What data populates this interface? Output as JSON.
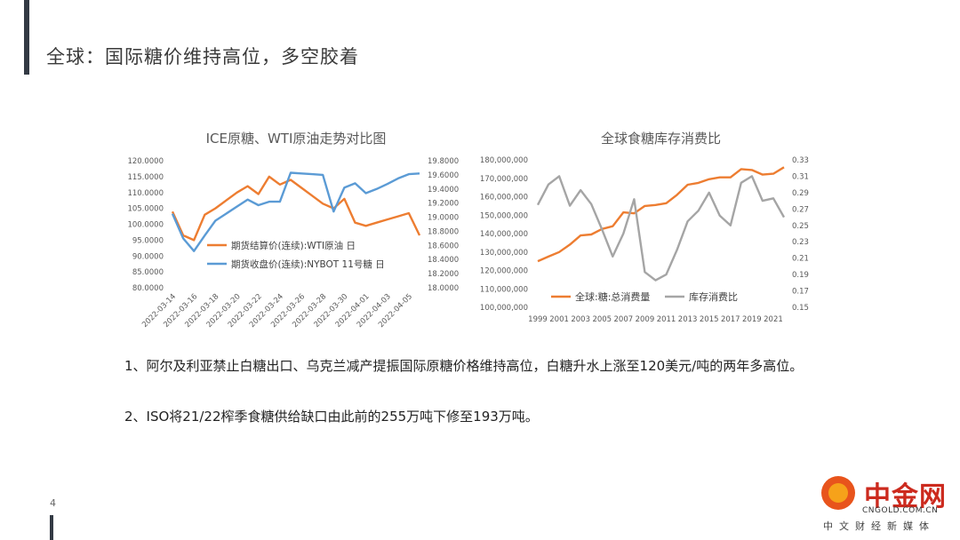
{
  "slide": {
    "title": "全球：国际糖价维持高位，多空胶着",
    "page_number": "4",
    "paragraphs": [
      "1、阿尔及利亚禁止白糖出口、乌克兰减产提振国际原糖价格维持高位，白糖升水上涨至120美元/吨的两年多高位。",
      "2、ISO将21/22榨季食糖供给缺口由此前的255万吨下修至193万吨。"
    ]
  },
  "logo": {
    "name": "中金网",
    "url": "CNGOLD.COM.CN",
    "subtitle": "中文财经新媒体"
  },
  "colors": {
    "orange": "#ed7d31",
    "blue": "#5b9bd5",
    "gray": "#a5a5a5"
  },
  "chart_data": [
    {
      "type": "line",
      "title": "ICE原糖、WTI原油走势对比图",
      "categories": [
        "2022-03-14",
        "2022-03-15",
        "2022-03-16",
        "2022-03-17",
        "2022-03-18",
        "2022-03-19",
        "2022-03-20",
        "2022-03-21",
        "2022-03-22",
        "2022-03-23",
        "2022-03-24",
        "2022-03-25",
        "2022-03-26",
        "2022-03-27",
        "2022-03-28",
        "2022-03-29",
        "2022-03-30",
        "2022-03-31",
        "2022-04-01",
        "2022-04-02",
        "2022-04-03",
        "2022-04-04",
        "2022-04-05",
        "2022-04-06"
      ],
      "x_tick_labels": [
        "2022-03-14",
        "2022-03-16",
        "2022-03-18",
        "2022-03-20",
        "2022-03-22",
        "2022-03-24",
        "2022-03-26",
        "2022-03-28",
        "2022-03-30",
        "2022-04-01",
        "2022-04-03",
        "2022-04-05"
      ],
      "ylim": [
        80,
        120
      ],
      "y_ticks": [
        "80.0000",
        "85.0000",
        "90.0000",
        "95.0000",
        "100.0000",
        "105.0000",
        "110.0000",
        "115.0000",
        "120.0000"
      ],
      "y2lim": [
        18.0,
        19.8
      ],
      "y2_ticks": [
        "18.0000",
        "18.2000",
        "18.4000",
        "18.6000",
        "18.8000",
        "19.0000",
        "19.2000",
        "19.4000",
        "19.6000",
        "19.8000"
      ],
      "series": [
        {
          "name": "期货结算价(连续):WTI原油 日",
          "axis": "left",
          "color": "#ed7d31",
          "values": [
            104.0,
            96.5,
            95.0,
            103.0,
            105.0,
            107.5,
            110.0,
            112.0,
            109.5,
            115.0,
            112.5,
            114.0,
            111.5,
            109.0,
            106.5,
            105.0,
            108.0,
            100.5,
            99.5,
            100.5,
            101.5,
            102.5,
            103.5,
            96.5
          ]
        },
        {
          "name": "期货收盘价(连续):NYBOT 11号糖 日",
          "axis": "right",
          "color": "#5b9bd5",
          "values": [
            19.05,
            18.7,
            18.52,
            18.74,
            18.95,
            19.05,
            19.15,
            19.25,
            19.17,
            19.22,
            19.22,
            19.63,
            19.62,
            19.61,
            19.6,
            19.08,
            19.42,
            19.48,
            19.34,
            19.4,
            19.47,
            19.55,
            19.61,
            19.62
          ]
        }
      ],
      "legend": "inside-bottom-right"
    },
    {
      "type": "line",
      "title": "全球食糖库存消费比",
      "categories": [
        "1999",
        "2000",
        "2001",
        "2002",
        "2003",
        "2004",
        "2005",
        "2006",
        "2007",
        "2008",
        "2009",
        "2010",
        "2011",
        "2012",
        "2013",
        "2014",
        "2015",
        "2016",
        "2017",
        "2018",
        "2019",
        "2020",
        "2021",
        "2022"
      ],
      "x_tick_labels": [
        "1999",
        "2001",
        "2003",
        "2005",
        "2007",
        "2009",
        "2011",
        "2013",
        "2015",
        "2017",
        "2019",
        "2021"
      ],
      "ylim": [
        100000000,
        180000000
      ],
      "y_ticks": [
        "100,000,000",
        "110,000,000",
        "120,000,000",
        "130,000,000",
        "140,000,000",
        "150,000,000",
        "160,000,000",
        "170,000,000",
        "180,000,000"
      ],
      "y2lim": [
        0.15,
        0.33
      ],
      "y2_ticks": [
        "0.15",
        "0.17",
        "0.19",
        "0.21",
        "0.23",
        "0.25",
        "0.27",
        "0.29",
        "0.31",
        "0.33"
      ],
      "series": [
        {
          "name": "全球:糖:总消费量",
          "axis": "left",
          "color": "#ed7d31",
          "values": [
            125000000,
            127500000,
            130000000,
            134000000,
            139000000,
            139500000,
            142500000,
            144000000,
            151500000,
            151000000,
            155000000,
            155500000,
            156500000,
            161000000,
            166500000,
            167500000,
            169500000,
            170500000,
            170500000,
            175000000,
            174500000,
            172000000,
            172500000,
            176000000
          ]
        },
        {
          "name": "库存消费比",
          "axis": "right",
          "color": "#a5a5a5",
          "values": [
            0.275,
            0.3,
            0.31,
            0.274,
            0.293,
            0.276,
            0.245,
            0.212,
            0.24,
            0.282,
            0.193,
            0.183,
            0.19,
            0.22,
            0.255,
            0.268,
            0.29,
            0.262,
            0.25,
            0.302,
            0.31,
            0.28,
            0.283,
            0.26
          ]
        }
      ],
      "legend": "inside-bottom"
    }
  ]
}
